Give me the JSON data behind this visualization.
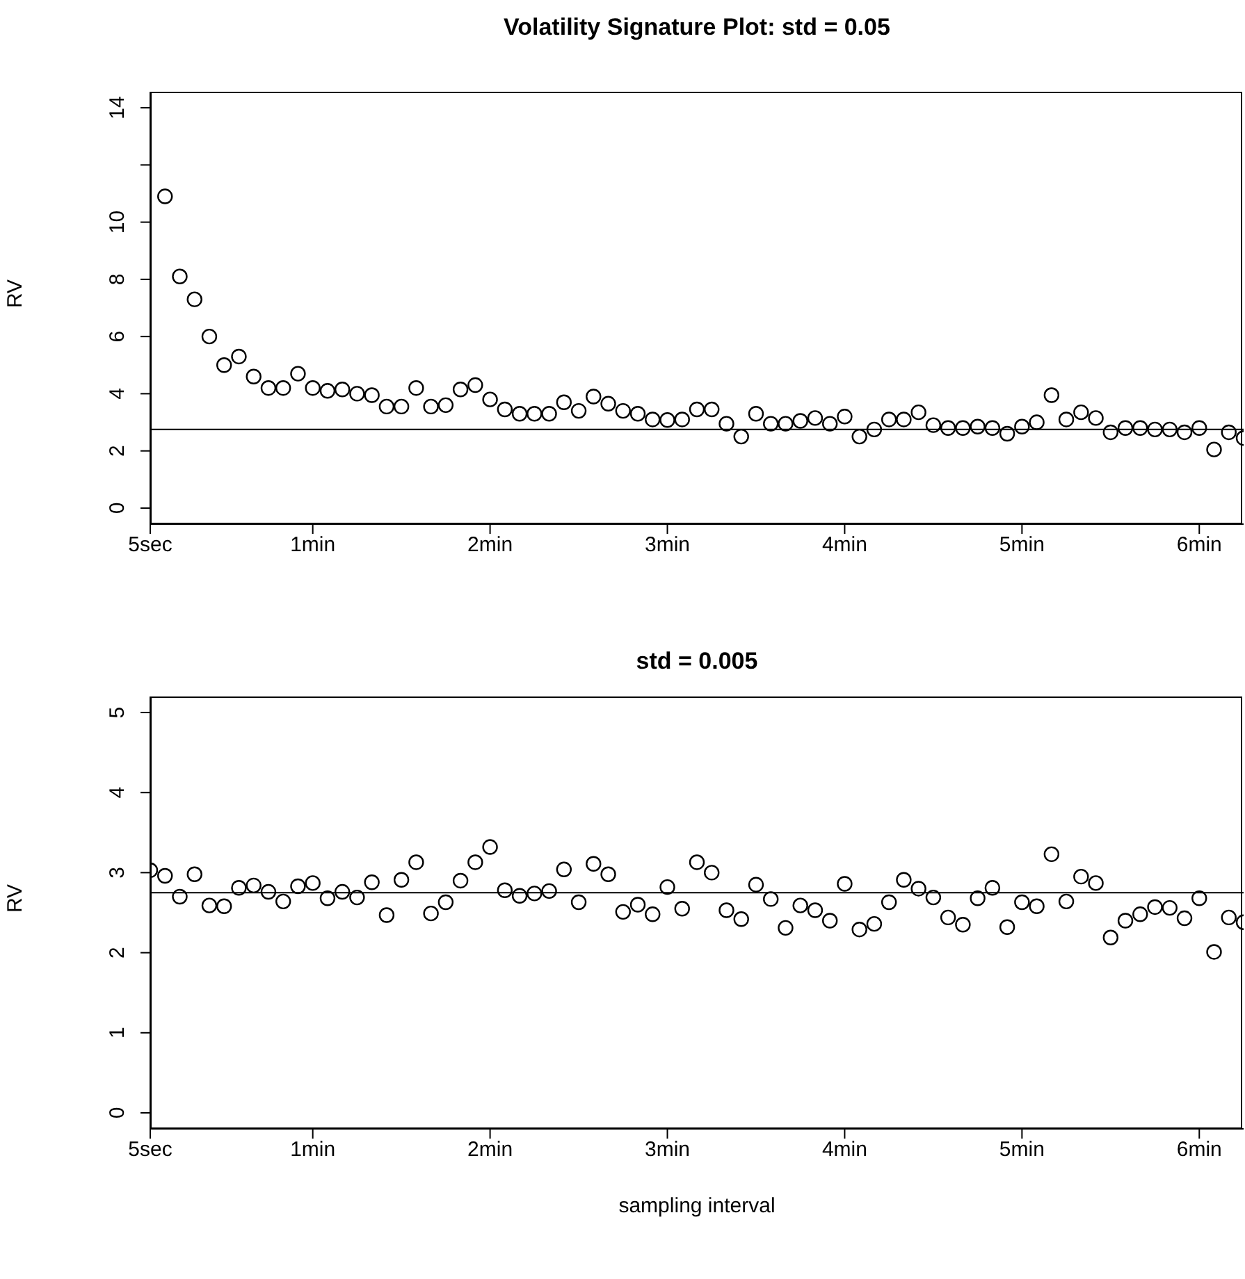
{
  "chart_data": [
    {
      "type": "scatter",
      "title": "Volatility Signature Plot: std = 0.05",
      "ylabel": "RV",
      "marker": "circle",
      "color": "#000000",
      "categories": [
        "5sec",
        null,
        null,
        null,
        null,
        null,
        null,
        null,
        null,
        null,
        null,
        "1min",
        null,
        null,
        null,
        null,
        null,
        null,
        null,
        null,
        null,
        null,
        null,
        "2min",
        null,
        null,
        null,
        null,
        null,
        null,
        null,
        null,
        null,
        null,
        null,
        "3min",
        null,
        null,
        null,
        null,
        null,
        null,
        null,
        null,
        null,
        null,
        null,
        "4min",
        null,
        null,
        null,
        null,
        null,
        null,
        null,
        null,
        null,
        null,
        null,
        "5min",
        null,
        null,
        null,
        null,
        null,
        null,
        null,
        null,
        null,
        null,
        null,
        "6min",
        null,
        null,
        null
      ],
      "values": [
        null,
        10.9,
        8.1,
        7.3,
        6.0,
        5.0,
        5.3,
        4.6,
        4.2,
        4.2,
        4.7,
        4.2,
        4.1,
        4.15,
        4.0,
        3.95,
        3.55,
        3.55,
        4.2,
        3.55,
        3.6,
        4.15,
        4.3,
        3.8,
        3.45,
        3.3,
        3.3,
        3.3,
        3.7,
        3.4,
        3.9,
        3.65,
        3.4,
        3.3,
        3.1,
        3.08,
        3.1,
        3.45,
        3.45,
        2.95,
        2.5,
        3.3,
        2.95,
        2.95,
        3.05,
        3.15,
        2.95,
        3.2,
        2.5,
        2.75,
        3.1,
        3.1,
        3.35,
        2.9,
        2.8,
        2.8,
        2.85,
        2.8,
        2.6,
        2.85,
        3.0,
        3.95,
        3.1,
        3.35,
        3.15,
        2.65,
        2.8,
        2.8,
        2.75,
        2.75,
        2.65,
        2.8,
        2.05,
        2.65,
        2.45
      ],
      "ylim": [
        -0.56,
        14.56
      ],
      "yticks": [
        0,
        2,
        4,
        6,
        8,
        10,
        {
          "value": 12,
          "label": null
        },
        14
      ],
      "ref_lines": [
        {
          "axis": "y",
          "value": 2.75,
          "color": "#000000"
        }
      ]
    },
    {
      "type": "scatter",
      "title": "std = 0.005",
      "xlabel": "sampling interval",
      "ylabel": "RV",
      "marker": "circle",
      "color": "#000000",
      "categories": [
        "5sec",
        null,
        null,
        null,
        null,
        null,
        null,
        null,
        null,
        null,
        null,
        "1min",
        null,
        null,
        null,
        null,
        null,
        null,
        null,
        null,
        null,
        null,
        null,
        "2min",
        null,
        null,
        null,
        null,
        null,
        null,
        null,
        null,
        null,
        null,
        null,
        "3min",
        null,
        null,
        null,
        null,
        null,
        null,
        null,
        null,
        null,
        null,
        null,
        "4min",
        null,
        null,
        null,
        null,
        null,
        null,
        null,
        null,
        null,
        null,
        null,
        "5min",
        null,
        null,
        null,
        null,
        null,
        null,
        null,
        null,
        null,
        null,
        null,
        "6min",
        null,
        null,
        null
      ],
      "values": [
        3.03,
        2.96,
        2.7,
        2.98,
        2.59,
        2.58,
        2.81,
        2.84,
        2.76,
        2.64,
        2.83,
        2.87,
        2.68,
        2.76,
        2.69,
        2.88,
        2.47,
        2.91,
        3.13,
        2.49,
        2.63,
        2.9,
        3.13,
        3.32,
        2.78,
        2.71,
        2.74,
        2.77,
        3.04,
        2.63,
        3.11,
        2.98,
        2.51,
        2.6,
        2.48,
        2.82,
        2.55,
        3.13,
        3.0,
        2.53,
        2.42,
        2.85,
        2.67,
        2.31,
        2.59,
        2.53,
        2.4,
        2.86,
        2.29,
        2.36,
        2.63,
        2.91,
        2.8,
        2.69,
        2.44,
        2.35,
        2.68,
        2.81,
        2.32,
        2.63,
        2.58,
        3.23,
        2.64,
        2.95,
        2.87,
        2.19,
        2.4,
        2.48,
        2.57,
        2.56,
        2.43,
        2.68,
        2.01,
        2.44,
        2.38
      ],
      "ylim": [
        -0.2,
        5.2
      ],
      "yticks": [
        0,
        1,
        2,
        3,
        4,
        5
      ],
      "ref_lines": [
        {
          "axis": "y",
          "value": 2.75,
          "color": "#000000"
        }
      ]
    }
  ]
}
